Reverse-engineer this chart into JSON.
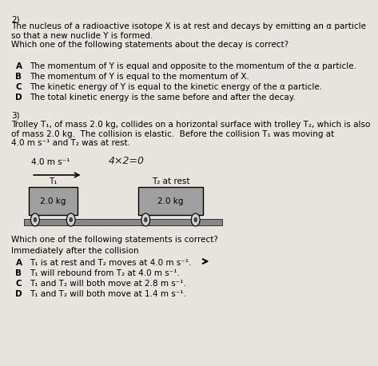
{
  "bg_color": "#e8e4de",
  "q2_number": "2)",
  "q2_intro": "The nucleus of a radioactive isotope X is at rest and decays by emitting an α particle\nso that a new nuclide Y is formed.\nWhich one of the following statements about the decay is correct?",
  "q2_options": [
    [
      "A",
      "The momentum of Y is equal and opposite to the momentum of the α particle."
    ],
    [
      "B",
      "The momentum of Y is equal to the momentum of X."
    ],
    [
      "C",
      "The kinetic energy of Y is equal to the kinetic energy of the α particle."
    ],
    [
      "D",
      "The total kinetic energy is the same before and after the decay."
    ]
  ],
  "q3_number": "3)",
  "q3_intro": "Trolley T₁, of mass 2.0 kg, collides on a horizontal surface with trolley T₂, which is also\nof mass 2.0 kg.  The collision is elastic.  Before the collision T₁ was moving at\n4.0 m s⁻¹ and T₂ was at rest.",
  "handwritten": "4×2=0",
  "trolley1_label": "T₁",
  "trolley1_mass": "2.0 kg",
  "trolley1_speed": "4.0 m s⁻¹",
  "trolley2_label": "T₂ at rest",
  "trolley2_mass": "2.0 kg",
  "q3_sub": "Which one of the following statements is correct?",
  "q3_sub2": "Immediately after the collision",
  "q3_options": [
    [
      "A",
      "T₁ is at rest and T₂ moves at 4.0 m s⁻¹."
    ],
    [
      "B",
      "T₁ will rebound from T₂ at 4.0 m s⁻¹."
    ],
    [
      "C",
      "T₁ and T₂ will both move at 2.8 m s⁻¹."
    ],
    [
      "D",
      "T₁ and T₂ will both move at 1.4 m s⁻¹."
    ]
  ],
  "answer_A_arrow": true,
  "trolley_color": "#a0a0a0",
  "wheel_color": "#555555",
  "rail_color": "#888888"
}
